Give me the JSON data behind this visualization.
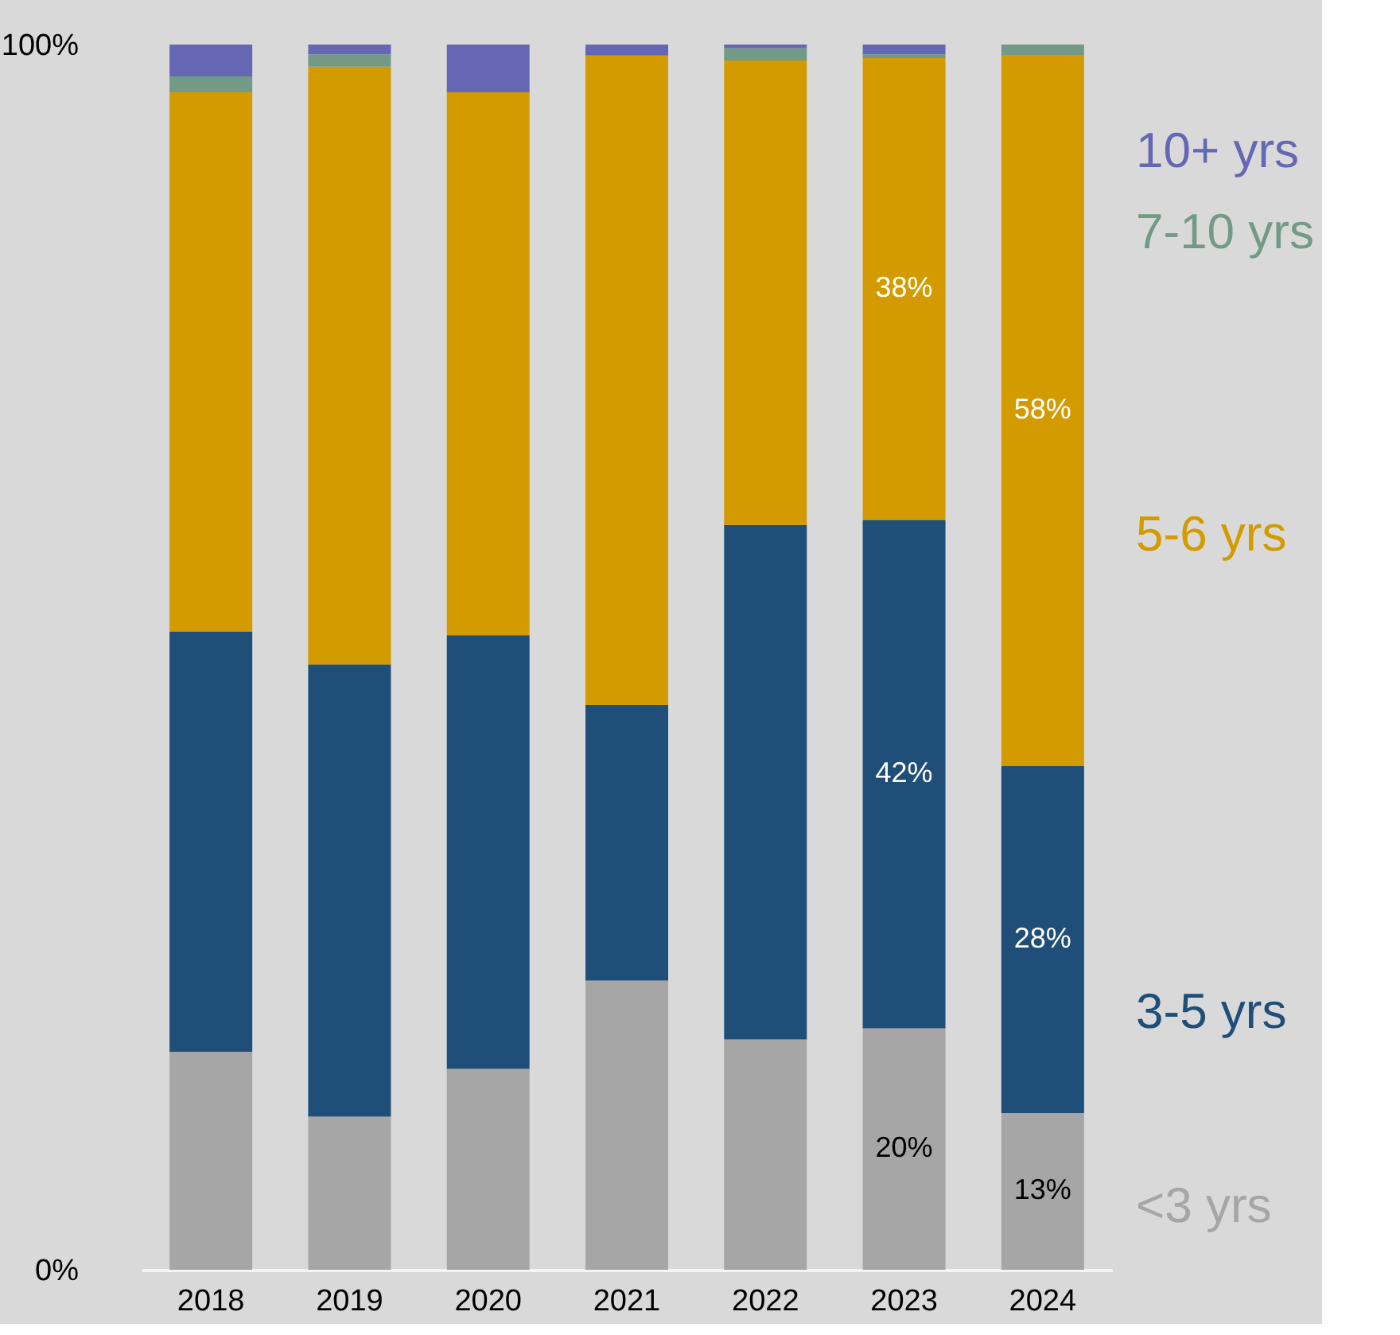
{
  "chart_data": {
    "type": "bar",
    "stacked": true,
    "categories": [
      "2018",
      "2019",
      "2020",
      "2021",
      "2022",
      "2023",
      "2024"
    ],
    "series": [
      {
        "name": "<3 yrs",
        "color": "#a6a6a6",
        "values": [
          17.8,
          12.5,
          16.4,
          23.6,
          18.8,
          19.7,
          12.8
        ],
        "value_labels": [
          null,
          null,
          null,
          null,
          null,
          "20%",
          "13%"
        ]
      },
      {
        "name": "3-5 yrs",
        "color": "#1f4e79",
        "values": [
          34.3,
          36.9,
          35.4,
          22.5,
          42.0,
          41.5,
          28.3
        ],
        "value_labels": [
          null,
          null,
          null,
          null,
          null,
          "42%",
          "28%"
        ]
      },
      {
        "name": "5-6 yrs",
        "color": "#d39b00",
        "values": [
          44.0,
          48.8,
          44.3,
          53.0,
          37.9,
          37.7,
          58.0
        ],
        "value_labels": [
          null,
          null,
          null,
          null,
          null,
          "38%",
          "58%"
        ]
      },
      {
        "name": "7-10 yrs",
        "color": "#739a86",
        "values": [
          1.3,
          1.0,
          0,
          0,
          1.0,
          0.3,
          0.9
        ]
      },
      {
        "name": "10+ yrs",
        "color": "#6667b4",
        "values": [
          2.6,
          0.8,
          3.9,
          0.9,
          0.3,
          0.8,
          0
        ]
      }
    ],
    "ylim": [
      0,
      100
    ],
    "yticks": [
      {
        "value": 0,
        "label": "0%"
      },
      {
        "value": 100,
        "label": "100%"
      }
    ],
    "legend": "right"
  }
}
